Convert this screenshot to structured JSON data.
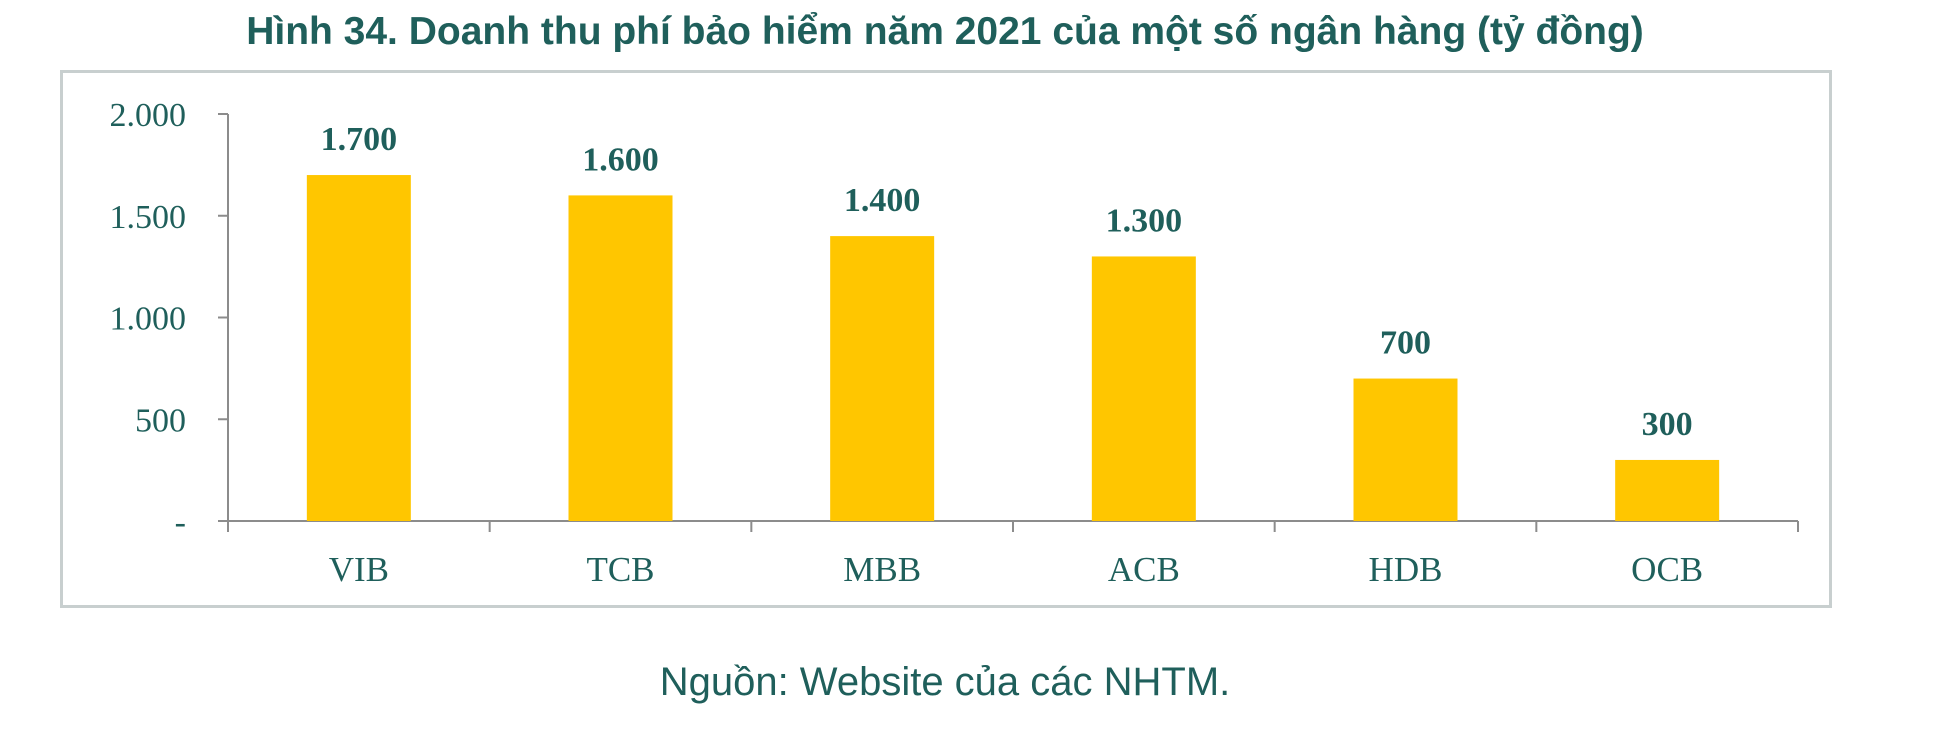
{
  "title": "Hình 34. Doanh thu phí bảo hiểm năm 2021 của một số ngân hàng (tỷ đồng)",
  "source": "Nguồn: Website của các NHTM.",
  "colors": {
    "bar": "#ffc600",
    "text": "#1f5f5b",
    "axis": "#8c8c8c"
  },
  "chart_data": {
    "type": "bar",
    "categories": [
      "VIB",
      "TCB",
      "MBB",
      "ACB",
      "HDB",
      "OCB"
    ],
    "values": [
      1700,
      1600,
      1400,
      1300,
      700,
      300
    ],
    "data_labels": [
      "1.700",
      "1.600",
      "1.400",
      "1.300",
      "700",
      "300"
    ],
    "ylim": [
      0,
      2000
    ],
    "yticks": [
      0,
      500,
      1000,
      1500,
      2000
    ],
    "ytick_labels": [
      "-",
      "500",
      "1.000",
      "1.500",
      "2.000"
    ],
    "grid": false,
    "legend": false
  }
}
